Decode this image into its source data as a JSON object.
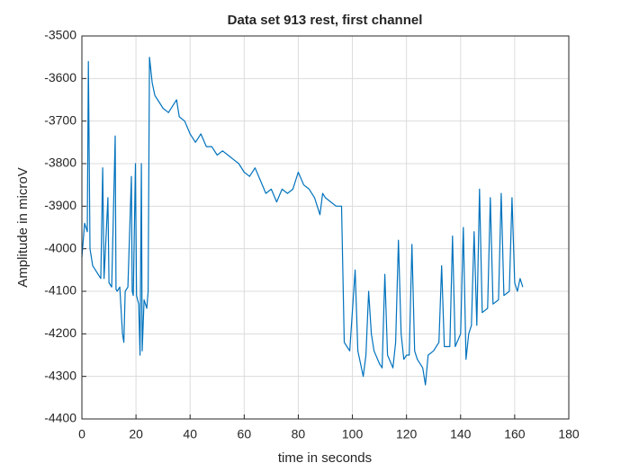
{
  "chart_data": {
    "type": "line",
    "title": "Data set 913 rest, first channel",
    "xlabel": "time in seconds",
    "ylabel": "Amplitude in microV",
    "x": [
      0,
      1,
      2,
      2.4,
      3,
      4,
      5,
      6,
      7,
      7.7,
      8.2,
      9.6,
      10,
      11,
      12.3,
      12.6,
      13,
      14,
      15,
      15.5,
      16,
      17,
      18.3,
      18.6,
      19,
      19.8,
      20.2,
      21,
      21.5,
      22,
      22.3,
      23,
      24,
      24.5,
      25,
      26,
      27,
      28,
      30,
      32,
      34,
      35,
      36,
      38,
      40,
      42,
      44,
      46,
      48,
      50,
      52,
      54,
      56,
      58,
      60,
      62,
      64,
      66,
      68,
      70,
      72,
      74,
      76,
      78,
      80,
      82,
      84,
      86,
      88,
      89,
      90,
      92,
      94,
      96,
      97,
      98,
      99,
      101,
      102,
      104,
      105,
      106,
      107,
      108,
      110,
      111,
      112,
      113,
      115,
      116,
      117,
      118,
      119,
      120,
      121,
      122,
      123,
      124,
      126,
      127,
      128,
      130,
      132,
      133,
      134,
      136,
      137,
      138,
      140,
      141,
      142,
      143,
      144,
      145,
      146,
      147,
      148,
      150,
      151,
      152,
      154,
      155,
      156,
      158,
      159,
      160,
      161,
      162,
      163
    ],
    "series": [
      {
        "name": "first channel",
        "color": "#0072bd",
        "values": [
          -4020,
          -3940,
          -3960,
          -3560,
          -4000,
          -4040,
          -4050,
          -4060,
          -4070,
          -3810,
          -4070,
          -3880,
          -4080,
          -4090,
          -3735,
          -4095,
          -4100,
          -4090,
          -4200,
          -4220,
          -4100,
          -4090,
          -3830,
          -4100,
          -4110,
          -3800,
          -4110,
          -4130,
          -4250,
          -3800,
          -4240,
          -4120,
          -4140,
          -4100,
          -3550,
          -3610,
          -3640,
          -3650,
          -3670,
          -3680,
          -3660,
          -3650,
          -3690,
          -3700,
          -3730,
          -3750,
          -3730,
          -3760,
          -3760,
          -3780,
          -3770,
          -3780,
          -3790,
          -3800,
          -3820,
          -3830,
          -3810,
          -3840,
          -3870,
          -3860,
          -3890,
          -3860,
          -3870,
          -3860,
          -3820,
          -3850,
          -3860,
          -3880,
          -3920,
          -3870,
          -3880,
          -3890,
          -3900,
          -3900,
          -4220,
          -4230,
          -4240,
          -4050,
          -4240,
          -4300,
          -4250,
          -4100,
          -4200,
          -4240,
          -4270,
          -4280,
          -4060,
          -4250,
          -4280,
          -4220,
          -3980,
          -4200,
          -4260,
          -4250,
          -4250,
          -3990,
          -4240,
          -4260,
          -4280,
          -4320,
          -4250,
          -4240,
          -4220,
          -4040,
          -4230,
          -4230,
          -3970,
          -4230,
          -4200,
          -3950,
          -4260,
          -4200,
          -4180,
          -3960,
          -4180,
          -3860,
          -4150,
          -4140,
          -3880,
          -4130,
          -4120,
          -3870,
          -4110,
          -4100,
          -3880,
          -4080,
          -4100,
          -4070,
          -4090
        ]
      }
    ],
    "xlim": [
      0,
      180
    ],
    "xticks": [
      0,
      20,
      40,
      60,
      80,
      100,
      120,
      140,
      160,
      180
    ],
    "ylim": [
      -4400,
      -3500
    ],
    "yticks": [
      -4400,
      -4300,
      -4200,
      -4100,
      -4000,
      -3900,
      -3800,
      -3700,
      -3600,
      -3500
    ],
    "grid": true
  }
}
